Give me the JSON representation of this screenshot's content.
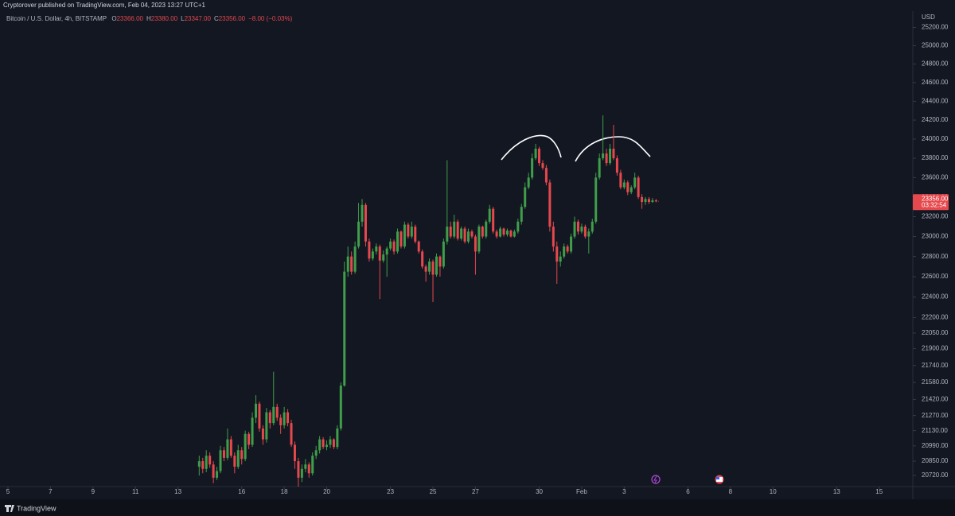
{
  "header": {
    "published": "Cryptorover published on TradingView.com, Feb 04, 2023 13:27 UTC+1"
  },
  "chart_data": {
    "type": "candlestick",
    "symbol": "Bitcoin / U.S. Dollar, 4h, BITSTAMP",
    "legend": [
      {
        "label": "O",
        "value": "23366.00"
      },
      {
        "label": "H",
        "value": "23380.00"
      },
      {
        "label": "L",
        "value": "23347.00"
      },
      {
        "label": "C",
        "value": "23356.00"
      }
    ],
    "change": "−8.00 (−0.03%)",
    "currency": "USD",
    "price_tag": "23356.00",
    "countdown": "03:32:54",
    "up_color": "#3f9e4a",
    "down_color": "#e5484d",
    "log_scale": true,
    "grid": false,
    "xlim": [
      87,
      1118
    ],
    "ylim": [
      20620,
      25380
    ],
    "xticks": [
      {
        "value": 96,
        "label": "5"
      },
      {
        "value": 144,
        "label": "7"
      },
      {
        "value": 192,
        "label": "9"
      },
      {
        "value": 240,
        "label": "11"
      },
      {
        "value": 288,
        "label": "13"
      },
      {
        "value": 360,
        "label": "16"
      },
      {
        "value": 408,
        "label": "18"
      },
      {
        "value": 456,
        "label": "20"
      },
      {
        "value": 528,
        "label": "23"
      },
      {
        "value": 576,
        "label": "25"
      },
      {
        "value": 624,
        "label": "27"
      },
      {
        "value": 696,
        "label": "30"
      },
      {
        "value": 744,
        "label": "Feb"
      },
      {
        "value": 792,
        "label": "3"
      },
      {
        "value": 864,
        "label": "6"
      },
      {
        "value": 912,
        "label": "8"
      },
      {
        "value": 960,
        "label": "10"
      },
      {
        "value": 1032,
        "label": "13"
      },
      {
        "value": 1080,
        "label": "15"
      }
    ],
    "yticks": [
      {
        "value": 25200,
        "label": "25200.00"
      },
      {
        "value": 25000,
        "label": "25000.00"
      },
      {
        "value": 24800,
        "label": "24800.00"
      },
      {
        "value": 24600,
        "label": "24600.00"
      },
      {
        "value": 24400,
        "label": "24400.00"
      },
      {
        "value": 24200,
        "label": "24200.00"
      },
      {
        "value": 24000,
        "label": "24000.00"
      },
      {
        "value": 23800,
        "label": "23800.00"
      },
      {
        "value": 23600,
        "label": "23600.00"
      },
      {
        "value": 23400,
        "label": "23400.00"
      },
      {
        "value": 23200,
        "label": "23200.00"
      },
      {
        "value": 23000,
        "label": "23000.00"
      },
      {
        "value": 22800,
        "label": "22800.00"
      },
      {
        "value": 22600,
        "label": "22600.00"
      },
      {
        "value": 22400,
        "label": "22400.00"
      },
      {
        "value": 22200,
        "label": "22200.00"
      },
      {
        "value": 22050,
        "label": "22050.00"
      },
      {
        "value": 21900,
        "label": "21900.00"
      },
      {
        "value": 21740,
        "label": "21740.00"
      },
      {
        "value": 21580,
        "label": "21580.00"
      },
      {
        "value": 21420,
        "label": "21420.00"
      },
      {
        "value": 21270,
        "label": "21270.00"
      },
      {
        "value": 21130,
        "label": "21130.00"
      },
      {
        "value": 20990,
        "label": "20990.00"
      },
      {
        "value": 20850,
        "label": "20850.00"
      },
      {
        "value": 20720,
        "label": "20720.00"
      }
    ],
    "x": [
      312,
      316,
      320,
      324,
      328,
      332,
      336,
      340,
      344,
      348,
      352,
      356,
      360,
      364,
      368,
      372,
      376,
      380,
      384,
      388,
      392,
      396,
      400,
      404,
      408,
      412,
      416,
      420,
      424,
      428,
      432,
      436,
      440,
      444,
      448,
      452,
      456,
      460,
      464,
      468,
      472,
      476,
      480,
      484,
      488,
      492,
      496,
      500,
      504,
      508,
      512,
      516,
      520,
      524,
      528,
      532,
      536,
      540,
      544,
      548,
      552,
      556,
      560,
      564,
      568,
      572,
      576,
      580,
      584,
      588,
      592,
      596,
      600,
      604,
      608,
      612,
      616,
      620,
      624,
      628,
      632,
      636,
      640,
      644,
      648,
      652,
      656,
      660,
      664,
      668,
      672,
      676,
      680,
      684,
      688,
      692,
      696,
      700,
      704,
      708,
      712,
      716,
      720,
      724,
      728,
      732,
      736,
      740,
      744,
      748,
      752,
      756,
      760,
      764,
      768,
      772,
      776,
      780,
      784,
      788,
      792,
      796,
      800,
      804,
      808,
      812,
      816,
      820,
      824,
      828
    ],
    "open": [
      20800,
      20850,
      20780,
      20900,
      20820,
      20700,
      20760,
      20950,
      20880,
      21050,
      20900,
      20800,
      20950,
      20870,
      21100,
      21000,
      21250,
      21380,
      21150,
      21050,
      21300,
      21200,
      21350,
      21250,
      21180,
      21300,
      21200,
      21000,
      20850,
      20700,
      20780,
      20820,
      20740,
      20900,
      20950,
      21050,
      20980,
      21000,
      21050,
      20980,
      21150,
      21550,
      22650,
      22800,
      22650,
      22900,
      23150,
      23320,
      22950,
      22780,
      22850,
      22900,
      22760,
      22820,
      22880,
      22950,
      22850,
      23050,
      22900,
      23120,
      23000,
      23100,
      22950,
      22850,
      22700,
      22650,
      22750,
      22620,
      22800,
      22700,
      22950,
      23100,
      23000,
      23150,
      22980,
      23080,
      22950,
      23050,
      23000,
      22850,
      23100,
      23000,
      23150,
      23280,
      23050,
      23000,
      23080,
      23020,
      23060,
      23000,
      23050,
      23150,
      23300,
      23500,
      23600,
      23800,
      23900,
      23750,
      23700,
      23550,
      23100,
      22900,
      22750,
      22800,
      22900,
      22850,
      23000,
      23150,
      23050,
      23100,
      23000,
      23050,
      23150,
      23600,
      23800,
      23850,
      23750,
      23900,
      23800,
      23650,
      23500,
      23550,
      23450,
      23500,
      23600,
      23400,
      23350,
      23380,
      23350,
      23366
    ],
    "high": [
      20900,
      20880,
      20950,
      20930,
      20850,
      20800,
      20990,
      20980,
      21150,
      21080,
      20930,
      21000,
      20980,
      21130,
      21120,
      21300,
      21460,
      21400,
      21180,
      21340,
      21320,
      21680,
      21380,
      21280,
      21350,
      21330,
      21230,
      21030,
      20880,
      20820,
      20870,
      20840,
      20930,
      20990,
      21080,
      21070,
      21040,
      21080,
      21060,
      21180,
      21580,
      22750,
      22900,
      22850,
      22950,
      23340,
      23380,
      23340,
      22980,
      22880,
      22930,
      22920,
      22860,
      22900,
      22980,
      22970,
      23080,
      23060,
      23150,
      23140,
      23150,
      23120,
      22960,
      22870,
      22720,
      22780,
      22770,
      22830,
      22810,
      22980,
      23780,
      23150,
      23220,
      23170,
      23100,
      23100,
      23080,
      23070,
      23020,
      23120,
      23110,
      23170,
      23320,
      23300,
      23070,
      23100,
      23090,
      23080,
      23070,
      23070,
      23180,
      23330,
      23550,
      23650,
      23850,
      23950,
      23920,
      23780,
      23730,
      23580,
      23150,
      22950,
      22850,
      22930,
      22920,
      23030,
      23200,
      23170,
      23130,
      23120,
      23080,
      23180,
      23650,
      23850,
      24250,
      23900,
      23950,
      24150,
      23830,
      23680,
      23580,
      23570,
      23520,
      23650,
      23620,
      23430,
      23400,
      23400,
      23390,
      23380
    ],
    "low": [
      20720,
      20740,
      20750,
      20790,
      20650,
      20680,
      20740,
      20850,
      20860,
      20880,
      20740,
      20780,
      20820,
      20850,
      20960,
      20980,
      21200,
      21120,
      21000,
      21020,
      21150,
      21180,
      21220,
      21100,
      21150,
      21170,
      20980,
      20780,
      20620,
      20660,
      20750,
      20700,
      20720,
      20870,
      20920,
      20960,
      20950,
      20970,
      20960,
      20960,
      21130,
      21540,
      22600,
      22620,
      22630,
      22880,
      23100,
      22900,
      22750,
      22760,
      22820,
      22380,
      22740,
      22600,
      22860,
      22820,
      22830,
      22880,
      22880,
      22980,
      22980,
      22930,
      22830,
      22680,
      22550,
      22620,
      22350,
      22600,
      22600,
      22680,
      22920,
      22980,
      22980,
      22960,
      22960,
      22930,
      22930,
      22980,
      22620,
      22830,
      22980,
      22980,
      23130,
      23030,
      22980,
      22990,
      23000,
      23000,
      22990,
      22990,
      23030,
      23120,
      23280,
      23480,
      23580,
      23780,
      23720,
      23680,
      23520,
      23050,
      22850,
      22530,
      22700,
      22780,
      22830,
      22830,
      22980,
      23020,
      23030,
      22980,
      22830,
      23030,
      23130,
      23580,
      23780,
      23720,
      23730,
      23780,
      23620,
      23480,
      23480,
      23420,
      23430,
      23480,
      23380,
      23280,
      23320,
      23330,
      23340,
      23347
    ],
    "close": [
      20850,
      20780,
      20900,
      20820,
      20700,
      20760,
      20950,
      20880,
      21050,
      20900,
      20800,
      20950,
      20870,
      21100,
      21000,
      21250,
      21380,
      21150,
      21050,
      21300,
      21200,
      21350,
      21250,
      21180,
      21300,
      21200,
      21000,
      20850,
      20700,
      20780,
      20820,
      20740,
      20900,
      20950,
      21050,
      20980,
      21000,
      21050,
      20980,
      21150,
      21550,
      22650,
      22800,
      22650,
      22900,
      23150,
      23320,
      22950,
      22780,
      22850,
      22900,
      22760,
      22820,
      22880,
      22950,
      22850,
      23050,
      22900,
      23120,
      23000,
      23100,
      22950,
      22850,
      22700,
      22650,
      22750,
      22620,
      22800,
      22700,
      22950,
      23100,
      23000,
      23150,
      22980,
      23080,
      22950,
      23050,
      23000,
      22850,
      23100,
      23000,
      23150,
      23280,
      23050,
      23000,
      23080,
      23020,
      23060,
      23000,
      23050,
      23150,
      23300,
      23500,
      23600,
      23800,
      23900,
      23750,
      23700,
      23550,
      23100,
      22900,
      22750,
      22800,
      22900,
      22850,
      23000,
      23150,
      23050,
      23100,
      23000,
      23050,
      23150,
      23600,
      23800,
      23850,
      23750,
      23900,
      23800,
      23650,
      23500,
      23550,
      23450,
      23500,
      23600,
      23400,
      23350,
      23380,
      23350,
      23366,
      23356
    ]
  },
  "footer": {
    "brand": "TradingView"
  }
}
